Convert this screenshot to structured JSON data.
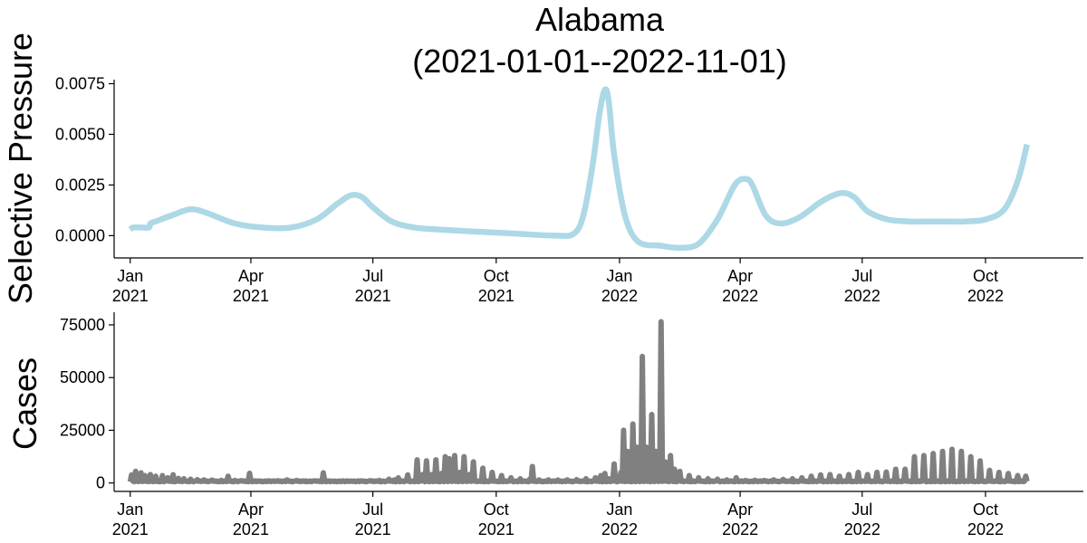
{
  "chart_data": [
    {
      "type": "line",
      "title": "Alabama\n(2021-01-01--2022-11-01)",
      "title_lines": [
        "Alabama",
        "(2021-01-01--2022-11-01)"
      ],
      "xlabel": "",
      "ylabel": "Selective Pressure",
      "xlim": [
        "2020-12-20",
        "2022-12-13"
      ],
      "ylim": [
        -0.0011,
        0.0077
      ],
      "grid": false,
      "legend": "none",
      "x_ticks": [
        "2021-01-01",
        "2021-04-01",
        "2021-07-01",
        "2021-10-01",
        "2022-01-01",
        "2022-04-01",
        "2022-07-01",
        "2022-10-01"
      ],
      "x_tick_labels": [
        [
          "Jan",
          "2021"
        ],
        [
          "Apr",
          "2021"
        ],
        [
          "Jul",
          "2021"
        ],
        [
          "Oct",
          "2021"
        ],
        [
          "Jan",
          "2022"
        ],
        [
          "Apr",
          "2022"
        ],
        [
          "Jul",
          "2022"
        ],
        [
          "Oct",
          "2022"
        ]
      ],
      "y_ticks": [
        0.0,
        0.0025,
        0.005,
        0.0075
      ],
      "y_tick_labels": [
        "0.0000",
        "0.0025",
        "0.0050",
        "0.0075"
      ],
      "series": [
        {
          "color": "#add8e6",
          "x": [
            "2021-01-01",
            "2021-01-03",
            "2021-01-10",
            "2021-01-15",
            "2021-01-16",
            "2021-01-20",
            "2021-02-01",
            "2021-02-15",
            "2021-02-28",
            "2021-03-20",
            "2021-04-10",
            "2021-05-01",
            "2021-05-20",
            "2021-06-05",
            "2021-06-15",
            "2021-06-23",
            "2021-07-01",
            "2021-07-15",
            "2021-08-01",
            "2021-08-20",
            "2021-09-15",
            "2021-10-15",
            "2021-11-15",
            "2021-11-28",
            "2021-12-05",
            "2021-12-12",
            "2021-12-17",
            "2021-12-21",
            "2021-12-24",
            "2021-12-28",
            "2022-01-05",
            "2022-01-15",
            "2022-02-01",
            "2022-02-15",
            "2022-03-01",
            "2022-03-15",
            "2022-03-28",
            "2022-04-05",
            "2022-04-10",
            "2022-04-20",
            "2022-05-01",
            "2022-05-15",
            "2022-06-01",
            "2022-06-15",
            "2022-06-25",
            "2022-07-05",
            "2022-07-20",
            "2022-08-05",
            "2022-08-25",
            "2022-09-15",
            "2022-10-01",
            "2022-10-15",
            "2022-10-25",
            "2022-11-01"
          ],
          "values": [
            0.0003,
            0.0004,
            0.0004,
            0.0004,
            0.0006,
            0.0007,
            0.001,
            0.0013,
            0.0011,
            0.0006,
            0.0004,
            0.0004,
            0.0008,
            0.0016,
            0.002,
            0.0019,
            0.0014,
            0.0007,
            0.0004,
            0.0003,
            0.0002,
            0.0001,
            0.0,
            0.0001,
            0.001,
            0.0035,
            0.006,
            0.0072,
            0.0066,
            0.004,
            0.001,
            -0.0003,
            -0.0005,
            -0.0006,
            -0.0004,
            0.0008,
            0.0025,
            0.0028,
            0.0025,
            0.001,
            0.0006,
            0.0009,
            0.0017,
            0.0021,
            0.0019,
            0.0012,
            0.0008,
            0.0007,
            0.0007,
            0.0007,
            0.0008,
            0.0013,
            0.0027,
            0.0045
          ]
        }
      ]
    },
    {
      "type": "line",
      "title": "",
      "xlabel": "",
      "ylabel": "Cases",
      "xlim": [
        "2020-12-20",
        "2022-12-13"
      ],
      "ylim": [
        -4000,
        81000
      ],
      "grid": false,
      "legend": "none",
      "x_ticks": [
        "2021-01-01",
        "2021-04-01",
        "2021-07-01",
        "2021-10-01",
        "2022-01-01",
        "2022-04-01",
        "2022-07-01",
        "2022-10-01"
      ],
      "x_tick_labels": [
        [
          "Jan",
          "2021"
        ],
        [
          "Apr",
          "2021"
        ],
        [
          "Jul",
          "2021"
        ],
        [
          "Oct",
          "2021"
        ],
        [
          "Jan",
          "2022"
        ],
        [
          "Apr",
          "2022"
        ],
        [
          "Jul",
          "2022"
        ],
        [
          "Oct",
          "2022"
        ]
      ],
      "y_ticks": [
        0,
        25000,
        50000,
        75000
      ],
      "y_tick_labels": [
        "0",
        "25000",
        "50000",
        "75000"
      ],
      "series": [
        {
          "color": "#808080",
          "baseline": 600,
          "start": "2021-01-01",
          "end": "2022-11-01",
          "spikes": [
            [
              "2021-01-02",
              3800
            ],
            [
              "2021-01-05",
              5500
            ],
            [
              "2021-01-09",
              4800
            ],
            [
              "2021-01-12",
              3500
            ],
            [
              "2021-01-16",
              4000
            ],
            [
              "2021-01-20",
              3200
            ],
            [
              "2021-01-25",
              3500
            ],
            [
              "2021-01-29",
              2500
            ],
            [
              "2021-02-02",
              3900
            ],
            [
              "2021-02-06",
              2200
            ],
            [
              "2021-02-10",
              2000
            ],
            [
              "2021-02-15",
              1800
            ],
            [
              "2021-02-20",
              1600
            ],
            [
              "2021-02-25",
              1500
            ],
            [
              "2021-03-03",
              1400
            ],
            [
              "2021-03-10",
              1300
            ],
            [
              "2021-03-15",
              3200
            ],
            [
              "2021-03-20",
              1200
            ],
            [
              "2021-03-25",
              1100
            ],
            [
              "2021-03-31",
              4600
            ],
            [
              "2021-04-07",
              1000
            ],
            [
              "2021-04-14",
              1000
            ],
            [
              "2021-04-21",
              1100
            ],
            [
              "2021-04-28",
              1500
            ],
            [
              "2021-05-05",
              1200
            ],
            [
              "2021-05-12",
              1000
            ],
            [
              "2021-05-19",
              1000
            ],
            [
              "2021-05-25",
              4800
            ],
            [
              "2021-06-01",
              900
            ],
            [
              "2021-06-08",
              900
            ],
            [
              "2021-06-15",
              900
            ],
            [
              "2021-06-22",
              1000
            ],
            [
              "2021-06-29",
              1100
            ],
            [
              "2021-07-06",
              1200
            ],
            [
              "2021-07-13",
              1800
            ],
            [
              "2021-07-17",
              1500
            ],
            [
              "2021-07-20",
              2500
            ],
            [
              "2021-07-27",
              3800
            ],
            [
              "2021-08-03",
              11000
            ],
            [
              "2021-08-07",
              4000
            ],
            [
              "2021-08-10",
              10500
            ],
            [
              "2021-08-14",
              4000
            ],
            [
              "2021-08-17",
              11000
            ],
            [
              "2021-08-21",
              4500
            ],
            [
              "2021-08-24",
              12500
            ],
            [
              "2021-08-27",
              11500
            ],
            [
              "2021-08-31",
              13000
            ],
            [
              "2021-09-04",
              5000
            ],
            [
              "2021-09-07",
              12500
            ],
            [
              "2021-09-11",
              4000
            ],
            [
              "2021-09-14",
              10000
            ],
            [
              "2021-09-21",
              7000
            ],
            [
              "2021-09-28",
              5000
            ],
            [
              "2021-10-05",
              3500
            ],
            [
              "2021-10-12",
              2500
            ],
            [
              "2021-10-19",
              2000
            ],
            [
              "2021-10-26",
              1800
            ],
            [
              "2021-10-28",
              7800
            ],
            [
              "2021-11-02",
              1500
            ],
            [
              "2021-11-09",
              1500
            ],
            [
              "2021-11-16",
              1400
            ],
            [
              "2021-11-23",
              1500
            ],
            [
              "2021-11-30",
              1600
            ],
            [
              "2021-12-07",
              2000
            ],
            [
              "2021-12-14",
              2500
            ],
            [
              "2021-12-18",
              3500
            ],
            [
              "2021-12-21",
              4500
            ],
            [
              "2021-12-24",
              2000
            ],
            [
              "2021-12-28",
              9000
            ],
            [
              "2022-01-02",
              5000
            ],
            [
              "2022-01-04",
              25000
            ],
            [
              "2022-01-07",
              15000
            ],
            [
              "2022-01-11",
              28000
            ],
            [
              "2022-01-14",
              17000
            ],
            [
              "2022-01-18",
              60000
            ],
            [
              "2022-01-21",
              17000
            ],
            [
              "2022-01-25",
              32500
            ],
            [
              "2022-01-28",
              15000
            ],
            [
              "2022-02-01",
              76500
            ],
            [
              "2022-02-04",
              10000
            ],
            [
              "2022-02-08",
              13000
            ],
            [
              "2022-02-11",
              6500
            ],
            [
              "2022-02-15",
              5500
            ],
            [
              "2022-02-22",
              3500
            ],
            [
              "2022-03-01",
              2500
            ],
            [
              "2022-03-08",
              2000
            ],
            [
              "2022-03-15",
              1800
            ],
            [
              "2022-03-22",
              1500
            ],
            [
              "2022-03-29",
              2500
            ],
            [
              "2022-04-05",
              1200
            ],
            [
              "2022-04-12",
              1300
            ],
            [
              "2022-04-19",
              1200
            ],
            [
              "2022-04-26",
              1500
            ],
            [
              "2022-05-03",
              1700
            ],
            [
              "2022-05-10",
              2000
            ],
            [
              "2022-05-17",
              2500
            ],
            [
              "2022-05-24",
              3200
            ],
            [
              "2022-05-31",
              3800
            ],
            [
              "2022-06-07",
              4000
            ],
            [
              "2022-06-14",
              3200
            ],
            [
              "2022-06-21",
              4000
            ],
            [
              "2022-06-28",
              5000
            ],
            [
              "2022-07-05",
              4000
            ],
            [
              "2022-07-12",
              5000
            ],
            [
              "2022-07-19",
              5200
            ],
            [
              "2022-07-26",
              6500
            ],
            [
              "2022-08-02",
              6500
            ],
            [
              "2022-08-09",
              12500
            ],
            [
              "2022-08-16",
              13000
            ],
            [
              "2022-08-23",
              14000
            ],
            [
              "2022-08-30",
              15000
            ],
            [
              "2022-09-06",
              16000
            ],
            [
              "2022-09-13",
              15000
            ],
            [
              "2022-09-20",
              12500
            ],
            [
              "2022-09-27",
              10500
            ],
            [
              "2022-10-04",
              6000
            ],
            [
              "2022-10-11",
              5000
            ],
            [
              "2022-10-18",
              4500
            ],
            [
              "2022-10-25",
              3500
            ],
            [
              "2022-10-31",
              3200
            ]
          ]
        }
      ]
    }
  ]
}
